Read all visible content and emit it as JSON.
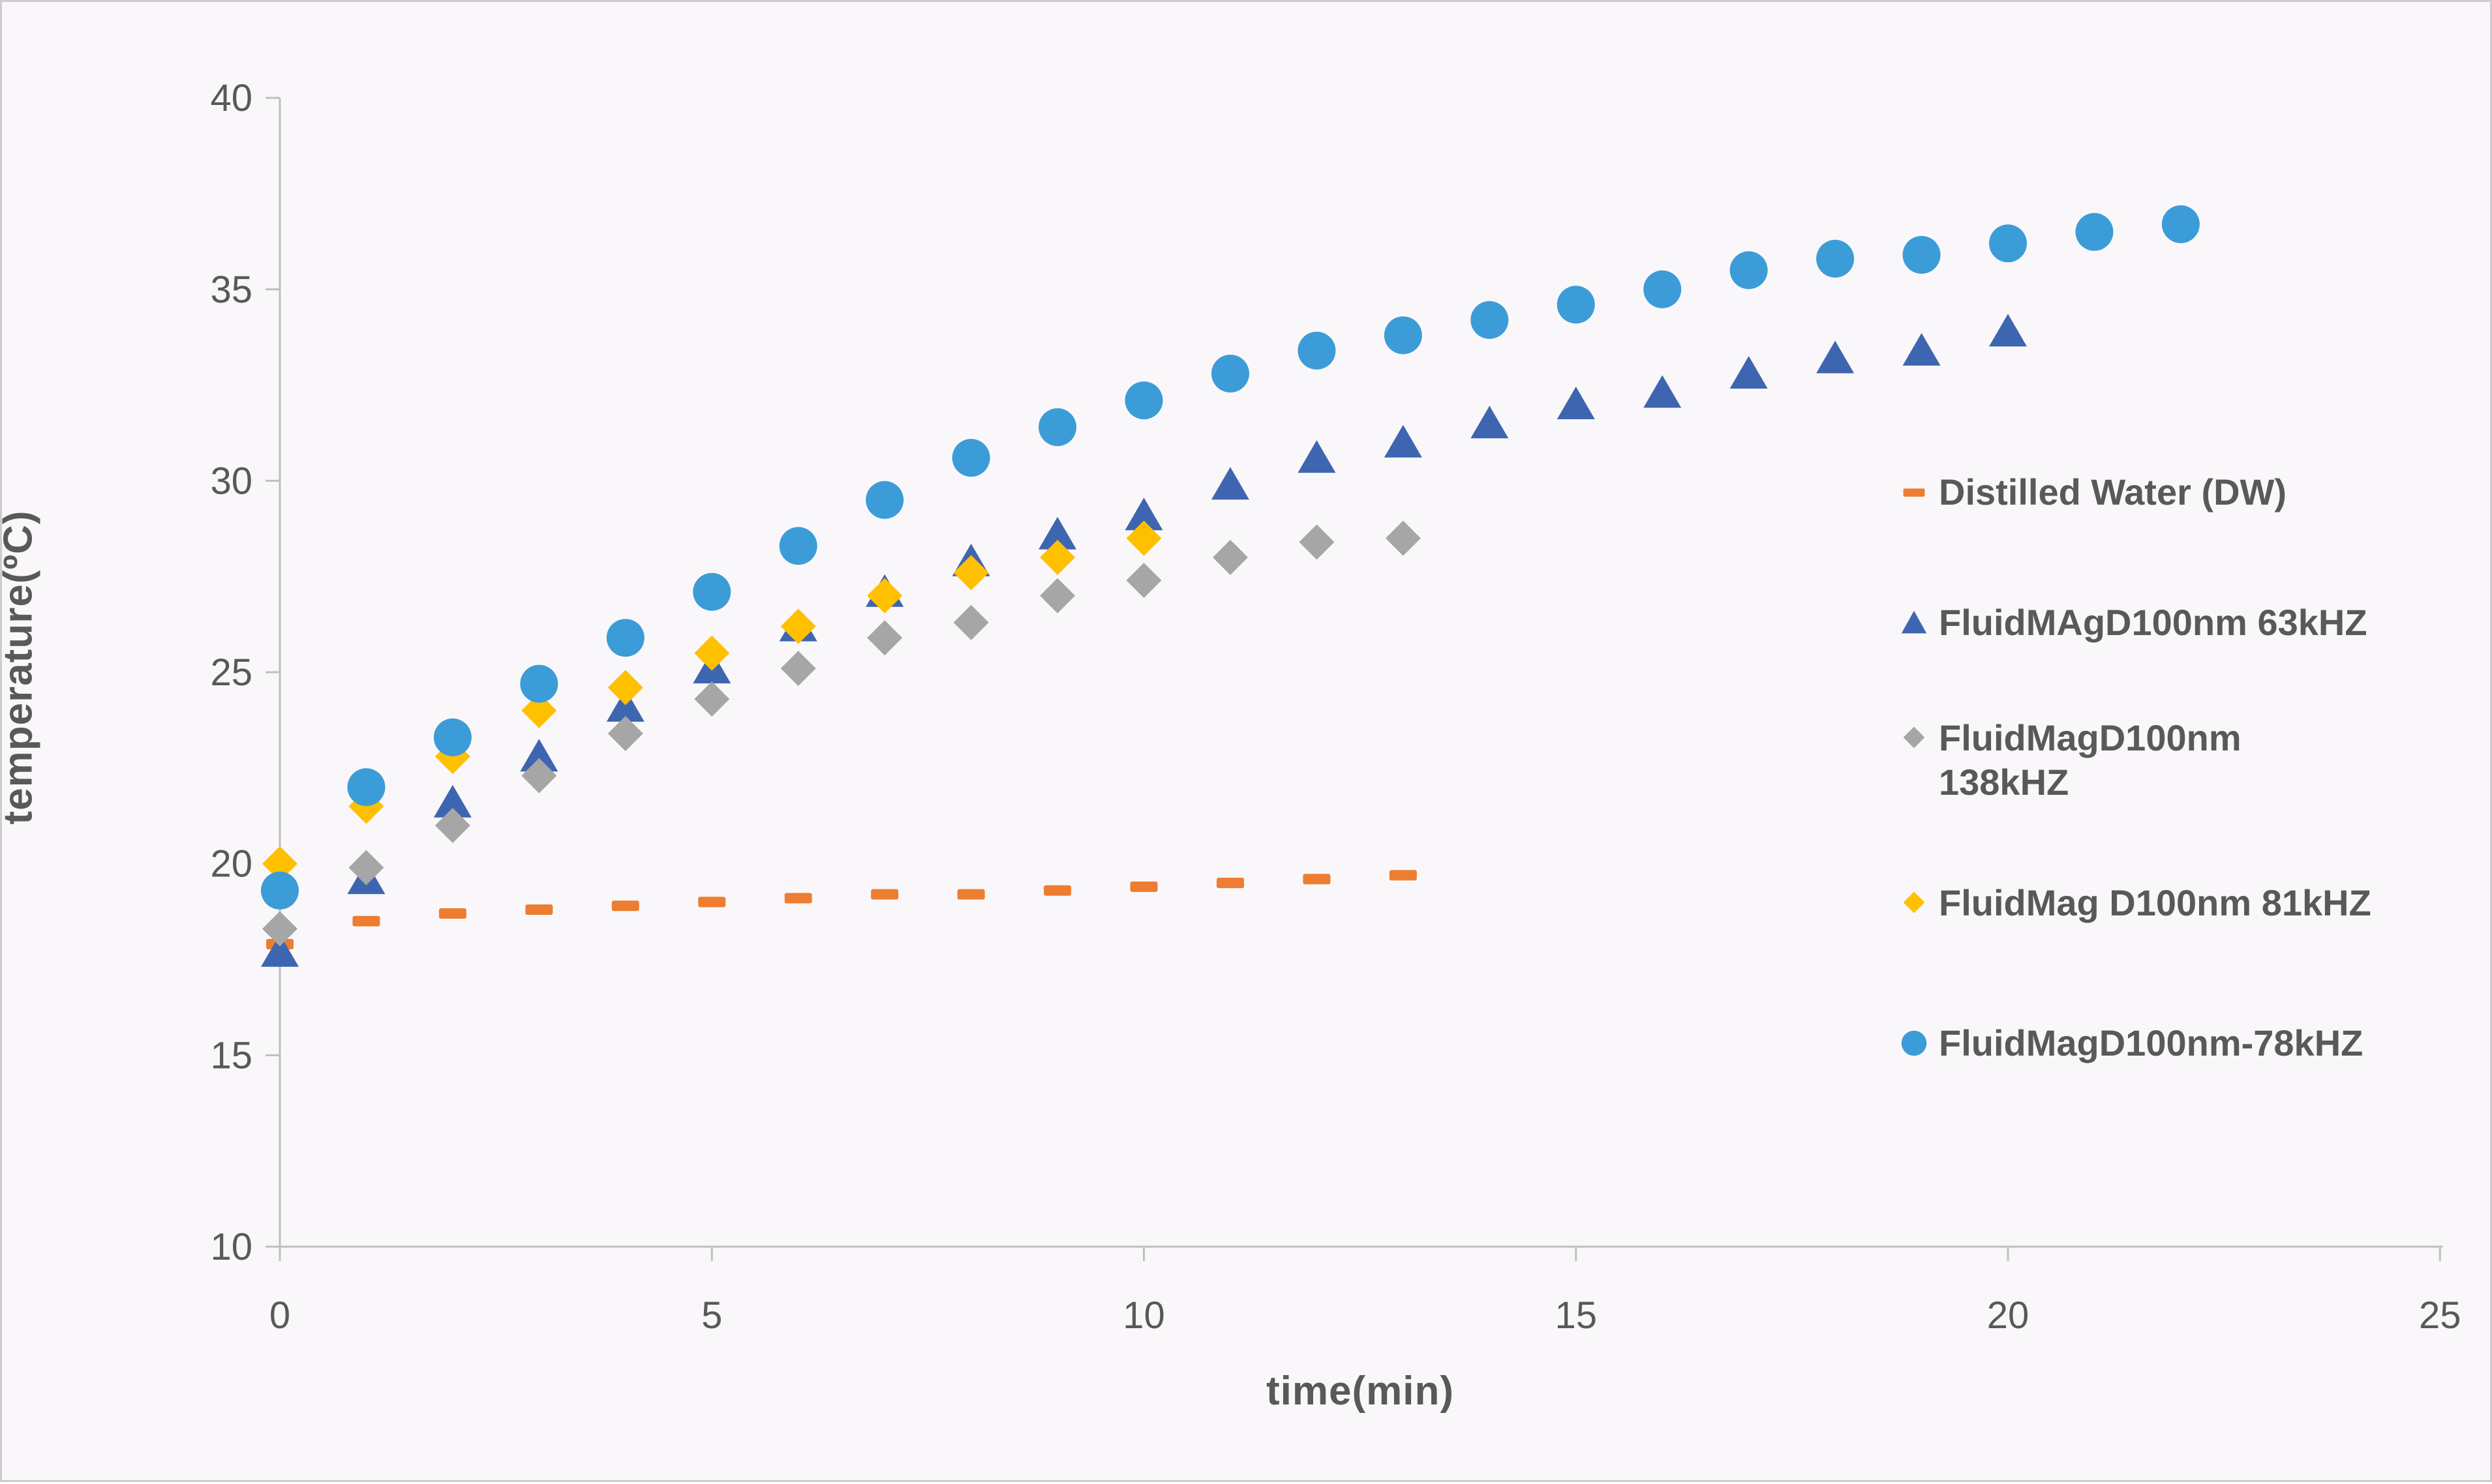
{
  "chart_data": {
    "type": "scatter",
    "title": "",
    "xlabel": "time(min)",
    "ylabel": "temperature(ºC)",
    "xlim": [
      0,
      25
    ],
    "ylim": [
      10,
      40
    ],
    "x_ticks": [
      0,
      5,
      10,
      15,
      20,
      25
    ],
    "y_ticks": [
      10,
      15,
      20,
      25,
      30,
      35,
      40
    ],
    "grid": false,
    "legend_position": "right",
    "series": [
      {
        "name": "Distilled Water (DW)",
        "marker": "dash",
        "color": "#ED7D31",
        "x": [
          0,
          1,
          2,
          3,
          4,
          5,
          6,
          7,
          8,
          9,
          10,
          11,
          12,
          13
        ],
        "y": [
          17.9,
          18.5,
          18.7,
          18.8,
          18.9,
          19.0,
          19.1,
          19.2,
          19.2,
          19.3,
          19.4,
          19.5,
          19.6,
          19.7
        ]
      },
      {
        "name": "FluidMAgD100nm 63kHZ",
        "marker": "triangle",
        "color": "#3E66B0",
        "x": [
          0,
          1,
          2,
          3,
          4,
          5,
          6,
          7,
          8,
          9,
          10,
          11,
          12,
          13,
          14,
          15,
          16,
          17,
          18,
          19,
          20
        ],
        "y": [
          17.7,
          19.6,
          21.6,
          22.8,
          24.1,
          25.1,
          26.2,
          27.1,
          27.9,
          28.6,
          29.1,
          29.9,
          30.6,
          31.0,
          31.5,
          32.0,
          32.3,
          32.8,
          33.2,
          33.4,
          33.9
        ]
      },
      {
        "name": "FluidMagD100nm 138kHZ",
        "marker": "diamond",
        "color": "#A6A6A6",
        "x": [
          0,
          1,
          2,
          3,
          4,
          5,
          6,
          7,
          8,
          9,
          10,
          11,
          12,
          13
        ],
        "y": [
          18.3,
          19.9,
          21.0,
          22.3,
          23.4,
          24.3,
          25.1,
          25.9,
          26.3,
          27.0,
          27.4,
          28.0,
          28.4,
          28.5
        ]
      },
      {
        "name": "FluidMag D100nm 81kHZ",
        "marker": "diamond",
        "color": "#FFC000",
        "x": [
          0,
          1,
          2,
          3,
          4,
          5,
          6,
          7,
          8,
          9,
          10
        ],
        "y": [
          20.0,
          21.5,
          22.8,
          24.0,
          24.6,
          25.5,
          26.2,
          27.0,
          27.6,
          28.0,
          28.5
        ]
      },
      {
        "name": "FluidMagD100nm-78kHZ",
        "marker": "circle",
        "color": "#3C9CD7",
        "x": [
          0,
          1,
          2,
          3,
          4,
          5,
          6,
          7,
          8,
          9,
          10,
          11,
          12,
          13,
          14,
          15,
          16,
          17,
          18,
          19,
          20,
          21,
          22
        ],
        "y": [
          19.3,
          22.0,
          23.3,
          24.7,
          25.9,
          27.1,
          28.3,
          29.5,
          30.6,
          31.4,
          32.1,
          32.8,
          33.4,
          33.8,
          34.2,
          34.6,
          35.0,
          35.5,
          35.8,
          35.9,
          36.2,
          36.5,
          36.7
        ]
      }
    ]
  },
  "legend": {
    "items": [
      {
        "marker": "dash",
        "color": "#ED7D31",
        "lines": [
          "Distilled Water (DW)"
        ]
      },
      {
        "marker": "triangle",
        "color": "#3E66B0",
        "lines": [
          "FluidMAgD100nm 63kHZ"
        ]
      },
      {
        "marker": "diamond",
        "color": "#A6A6A6",
        "lines": [
          "FluidMagD100nm",
          "138kHZ"
        ]
      },
      {
        "marker": "diamond",
        "color": "#FFC000",
        "lines": [
          "FluidMag D100nm 81kHZ"
        ]
      },
      {
        "marker": "circle",
        "color": "#3C9CD7",
        "lines": [
          "FluidMagD100nm-78kHZ"
        ]
      }
    ]
  },
  "style": {
    "background": "#faf7fa",
    "axis_line_color": "#BFBFBF",
    "text_color": "#595959"
  }
}
